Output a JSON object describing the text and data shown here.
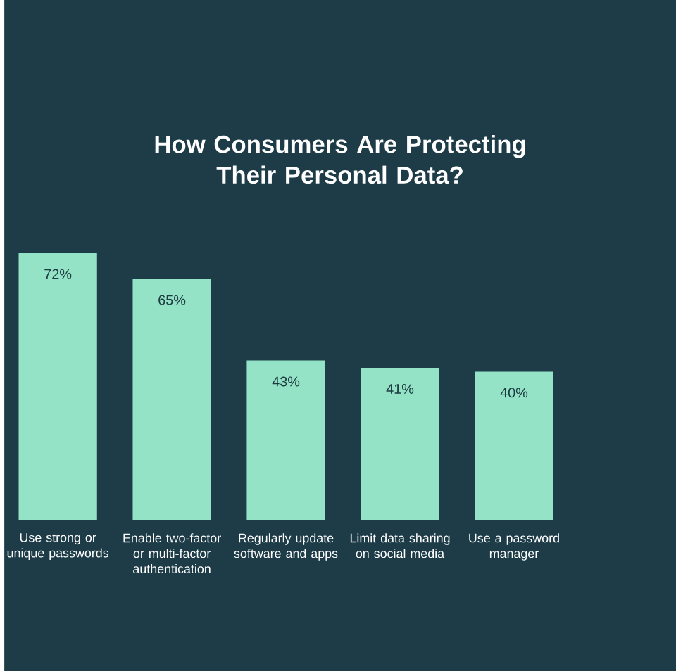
{
  "chart_data": {
    "type": "bar",
    "title": "How Consumers Are Protecting Their Personal Data?",
    "categories": [
      "Use strong or unique passwords",
      "Enable two-factor or multi-factor authentication",
      "Regularly update software and apps",
      "Limit data sharing on social media",
      "Use a password manager"
    ],
    "values": [
      72,
      65,
      43,
      41,
      40
    ],
    "value_labels": [
      "72%",
      "65%",
      "43%",
      "41%",
      "40%"
    ],
    "color": "#94e3c7"
  }
}
